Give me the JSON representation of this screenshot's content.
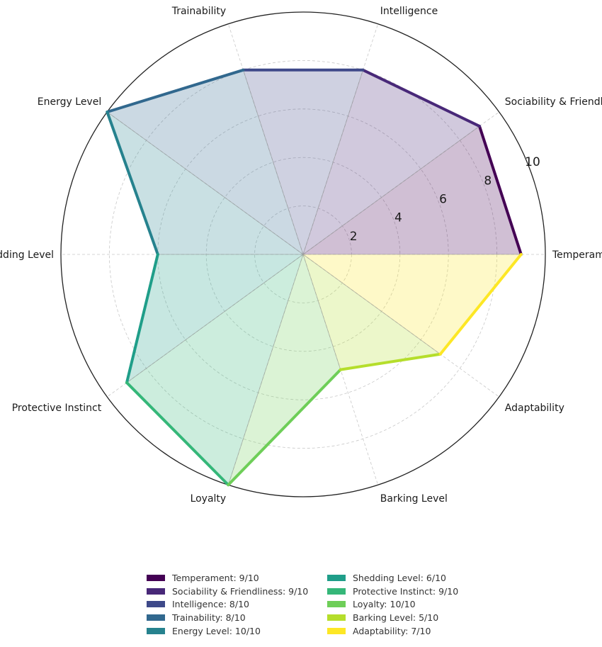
{
  "chart_data": {
    "type": "radar",
    "title": "",
    "scale_max": 10,
    "radial_ticks": [
      2,
      4,
      6,
      8,
      10
    ],
    "grid": true,
    "legend_position": "bottom",
    "categories": [
      "Temperament",
      "Sociability & Friendliness",
      "Intelligence",
      "Trainability",
      "Energy Level",
      "Shedding Level",
      "Protective Instinct",
      "Loyalty",
      "Barking Level",
      "Adaptability"
    ],
    "values": [
      9,
      9,
      8,
      8,
      10,
      6,
      9,
      10,
      5,
      7
    ],
    "colors": [
      "#440154",
      "#482878",
      "#3e4989",
      "#31688e",
      "#26828e",
      "#1f9e89",
      "#35b779",
      "#6ece58",
      "#b5de2b",
      "#fde725"
    ],
    "legend": [
      "Temperament: 9/10",
      "Sociability & Friendliness: 9/10",
      "Intelligence: 8/10",
      "Trainability: 8/10",
      "Energy Level: 10/10",
      "Shedding Level: 6/10",
      "Protective Instinct: 9/10",
      "Loyalty: 10/10",
      "Barking Level: 5/10",
      "Adaptability: 7/10"
    ]
  }
}
